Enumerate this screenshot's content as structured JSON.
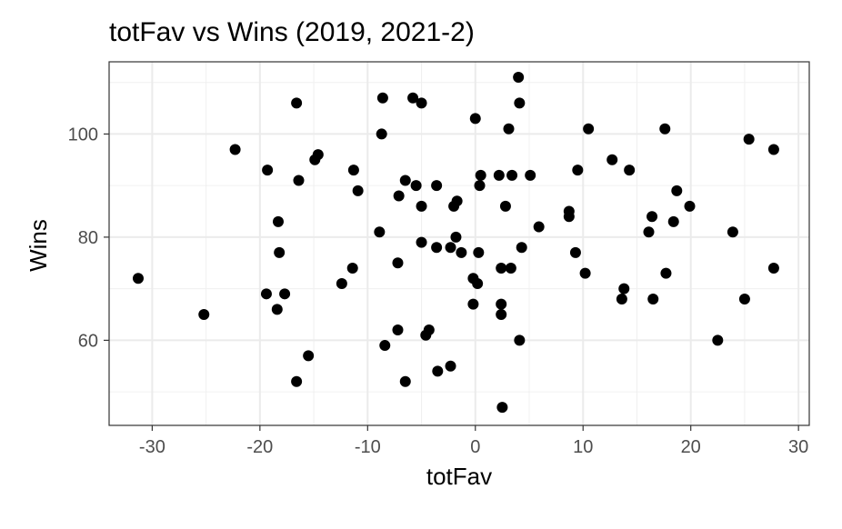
{
  "chart_data": {
    "type": "scatter",
    "title": "totFav vs Wins (2019, 2021-2)",
    "xlabel": "totFav",
    "ylabel": "Wins",
    "xlim": [
      -34,
      31
    ],
    "ylim": [
      43.5,
      114
    ],
    "x_ticks": [
      -30,
      -20,
      -10,
      0,
      10,
      20,
      30
    ],
    "y_ticks": [
      60,
      80,
      100
    ],
    "grid": true,
    "theme": "bw",
    "point_color": "#000000",
    "points": [
      {
        "x": -31.3,
        "y": 72
      },
      {
        "x": -25.2,
        "y": 65
      },
      {
        "x": -22.3,
        "y": 97
      },
      {
        "x": -19.3,
        "y": 93
      },
      {
        "x": -19.4,
        "y": 69
      },
      {
        "x": -18.3,
        "y": 83
      },
      {
        "x": -18.2,
        "y": 77
      },
      {
        "x": -18.4,
        "y": 66
      },
      {
        "x": -17.7,
        "y": 69
      },
      {
        "x": -16.6,
        "y": 106
      },
      {
        "x": -16.4,
        "y": 91
      },
      {
        "x": -16.6,
        "y": 52
      },
      {
        "x": -15.5,
        "y": 57
      },
      {
        "x": -14.9,
        "y": 95
      },
      {
        "x": -14.6,
        "y": 96
      },
      {
        "x": -12.4,
        "y": 71
      },
      {
        "x": -11.4,
        "y": 74
      },
      {
        "x": -11.3,
        "y": 93
      },
      {
        "x": -10.9,
        "y": 89
      },
      {
        "x": -8.9,
        "y": 81
      },
      {
        "x": -8.7,
        "y": 100
      },
      {
        "x": -8.6,
        "y": 107
      },
      {
        "x": -8.4,
        "y": 59
      },
      {
        "x": -7.2,
        "y": 62
      },
      {
        "x": -7.1,
        "y": 88
      },
      {
        "x": -7.2,
        "y": 75
      },
      {
        "x": -6.5,
        "y": 91
      },
      {
        "x": -6.5,
        "y": 52
      },
      {
        "x": -5.8,
        "y": 107
      },
      {
        "x": -5.5,
        "y": 90
      },
      {
        "x": -5.0,
        "y": 106
      },
      {
        "x": -5.0,
        "y": 86
      },
      {
        "x": -5.0,
        "y": 79
      },
      {
        "x": -4.6,
        "y": 61
      },
      {
        "x": -4.3,
        "y": 62
      },
      {
        "x": -3.6,
        "y": 90
      },
      {
        "x": -3.6,
        "y": 78
      },
      {
        "x": -3.5,
        "y": 54
      },
      {
        "x": -2.3,
        "y": 78
      },
      {
        "x": -2.3,
        "y": 55
      },
      {
        "x": -2.0,
        "y": 86
      },
      {
        "x": -1.7,
        "y": 87
      },
      {
        "x": -1.8,
        "y": 80
      },
      {
        "x": -1.3,
        "y": 77
      },
      {
        "x": -0.2,
        "y": 72
      },
      {
        "x": -0.2,
        "y": 67
      },
      {
        "x": 0.0,
        "y": 103
      },
      {
        "x": 0.2,
        "y": 71
      },
      {
        "x": 0.3,
        "y": 77
      },
      {
        "x": 0.5,
        "y": 92
      },
      {
        "x": 0.4,
        "y": 90
      },
      {
        "x": 2.2,
        "y": 92
      },
      {
        "x": 2.4,
        "y": 74
      },
      {
        "x": 2.4,
        "y": 67
      },
      {
        "x": 2.4,
        "y": 65
      },
      {
        "x": 2.5,
        "y": 47
      },
      {
        "x": 2.8,
        "y": 86
      },
      {
        "x": 3.1,
        "y": 101
      },
      {
        "x": 3.3,
        "y": 74
      },
      {
        "x": 3.4,
        "y": 92
      },
      {
        "x": 4.0,
        "y": 111
      },
      {
        "x": 4.1,
        "y": 106
      },
      {
        "x": 4.3,
        "y": 78
      },
      {
        "x": 4.1,
        "y": 60
      },
      {
        "x": 5.1,
        "y": 92
      },
      {
        "x": 5.9,
        "y": 82
      },
      {
        "x": 8.7,
        "y": 85
      },
      {
        "x": 8.7,
        "y": 84
      },
      {
        "x": 9.3,
        "y": 77
      },
      {
        "x": 9.5,
        "y": 93
      },
      {
        "x": 10.2,
        "y": 73
      },
      {
        "x": 10.5,
        "y": 101
      },
      {
        "x": 12.7,
        "y": 95
      },
      {
        "x": 13.6,
        "y": 68
      },
      {
        "x": 13.8,
        "y": 70
      },
      {
        "x": 14.3,
        "y": 93
      },
      {
        "x": 16.1,
        "y": 81
      },
      {
        "x": 16.4,
        "y": 84
      },
      {
        "x": 16.5,
        "y": 68
      },
      {
        "x": 17.6,
        "y": 101
      },
      {
        "x": 17.7,
        "y": 73
      },
      {
        "x": 18.4,
        "y": 83
      },
      {
        "x": 18.7,
        "y": 89
      },
      {
        "x": 19.9,
        "y": 86
      },
      {
        "x": 22.5,
        "y": 60
      },
      {
        "x": 23.9,
        "y": 81
      },
      {
        "x": 25.0,
        "y": 68
      },
      {
        "x": 25.4,
        "y": 99
      },
      {
        "x": 27.7,
        "y": 97
      },
      {
        "x": 27.7,
        "y": 74
      }
    ]
  }
}
